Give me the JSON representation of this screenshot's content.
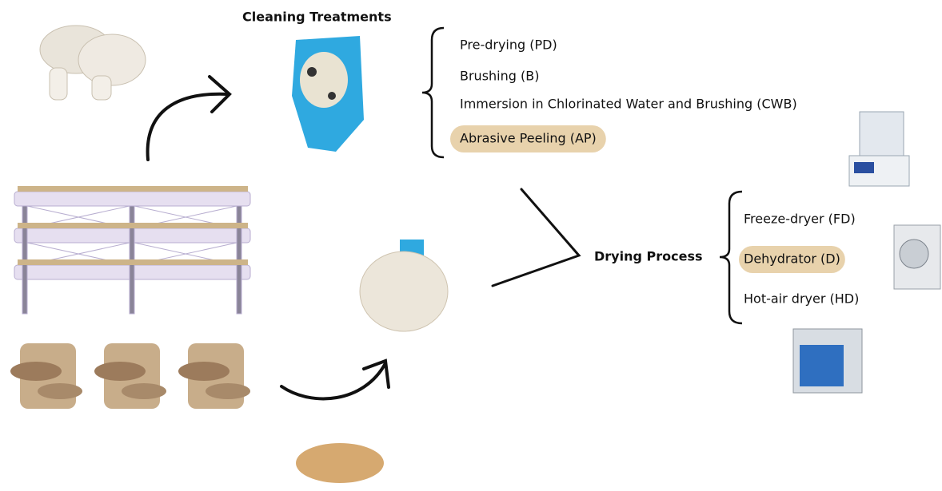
{
  "cleaning": {
    "title": "Cleaning Treatments",
    "items": [
      {
        "label": "Pre-drying (PD)",
        "highlighted": false
      },
      {
        "label": "Brushing (B)",
        "highlighted": false
      },
      {
        "label": "Immersion in Chlorinated Water and Brushing (CWB)",
        "highlighted": false
      },
      {
        "label": "Abrasive Peeling (AP)",
        "highlighted": true
      }
    ]
  },
  "drying": {
    "title": "Drying Process",
    "items": [
      {
        "label": "Freeze-dryer (FD)",
        "highlighted": false
      },
      {
        "label": "Dehydrator (D)",
        "highlighted": true
      },
      {
        "label": "Hot-air dryer (HD)",
        "highlighted": false
      }
    ]
  }
}
